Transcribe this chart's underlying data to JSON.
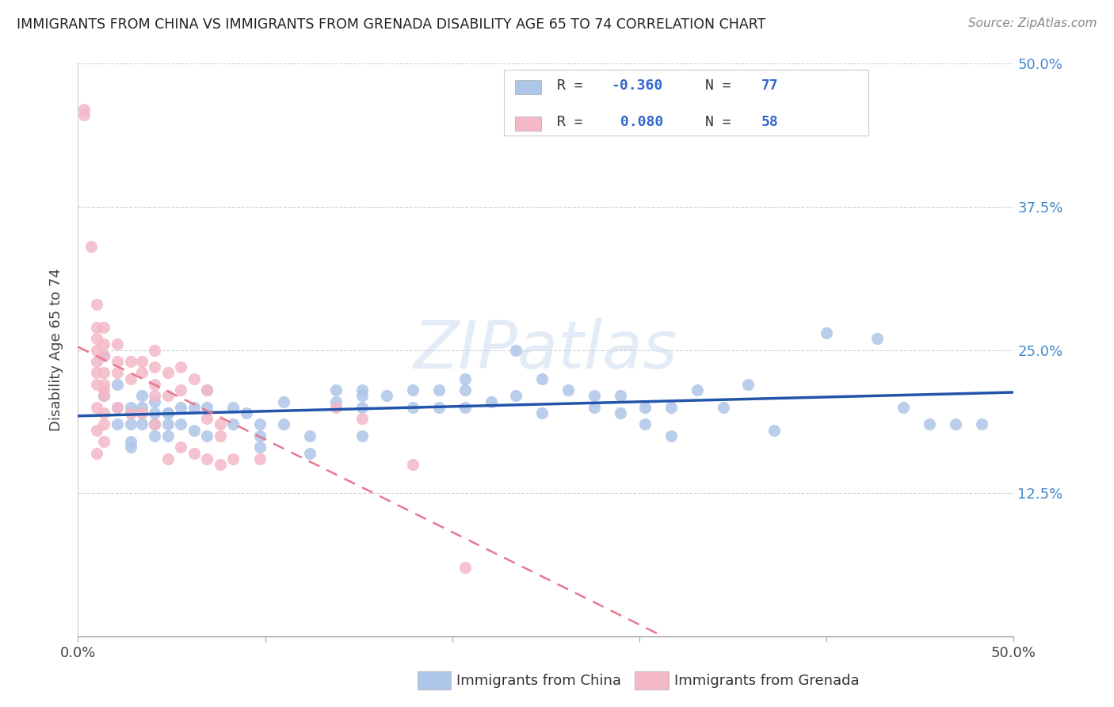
{
  "title": "IMMIGRANTS FROM CHINA VS IMMIGRANTS FROM GRENADA DISABILITY AGE 65 TO 74 CORRELATION CHART",
  "source": "Source: ZipAtlas.com",
  "ylabel": "Disability Age 65 to 74",
  "xlim": [
    0.0,
    0.5
  ],
  "ylim": [
    0.0,
    0.5
  ],
  "china_color": "#aec6e8",
  "grenada_color": "#f4b8c8",
  "china_line_color": "#2255aa",
  "grenada_line_color": "#e87890",
  "background_color": "#ffffff",
  "china_x": [
    0.014,
    0.014,
    0.021,
    0.021,
    0.021,
    0.028,
    0.028,
    0.028,
    0.028,
    0.028,
    0.034,
    0.034,
    0.034,
    0.034,
    0.041,
    0.041,
    0.041,
    0.041,
    0.048,
    0.048,
    0.048,
    0.048,
    0.055,
    0.055,
    0.062,
    0.062,
    0.069,
    0.069,
    0.069,
    0.083,
    0.083,
    0.09,
    0.097,
    0.097,
    0.097,
    0.11,
    0.11,
    0.124,
    0.124,
    0.138,
    0.138,
    0.152,
    0.152,
    0.152,
    0.152,
    0.165,
    0.179,
    0.179,
    0.193,
    0.193,
    0.207,
    0.207,
    0.207,
    0.221,
    0.234,
    0.234,
    0.248,
    0.248,
    0.262,
    0.276,
    0.276,
    0.29,
    0.29,
    0.303,
    0.303,
    0.317,
    0.317,
    0.331,
    0.345,
    0.358,
    0.372,
    0.4,
    0.427,
    0.441,
    0.455,
    0.469,
    0.483
  ],
  "china_y": [
    0.245,
    0.21,
    0.22,
    0.2,
    0.185,
    0.2,
    0.195,
    0.185,
    0.17,
    0.165,
    0.21,
    0.2,
    0.195,
    0.185,
    0.205,
    0.195,
    0.185,
    0.175,
    0.195,
    0.195,
    0.185,
    0.175,
    0.2,
    0.185,
    0.2,
    0.18,
    0.215,
    0.2,
    0.175,
    0.2,
    0.185,
    0.195,
    0.185,
    0.175,
    0.165,
    0.205,
    0.185,
    0.175,
    0.16,
    0.215,
    0.205,
    0.215,
    0.21,
    0.2,
    0.175,
    0.21,
    0.215,
    0.2,
    0.215,
    0.2,
    0.225,
    0.215,
    0.2,
    0.205,
    0.25,
    0.21,
    0.225,
    0.195,
    0.215,
    0.21,
    0.2,
    0.21,
    0.195,
    0.2,
    0.185,
    0.2,
    0.175,
    0.215,
    0.2,
    0.22,
    0.18,
    0.265,
    0.26,
    0.2,
    0.185,
    0.185,
    0.185
  ],
  "grenada_x": [
    0.003,
    0.003,
    0.007,
    0.01,
    0.01,
    0.01,
    0.01,
    0.01,
    0.01,
    0.01,
    0.01,
    0.01,
    0.01,
    0.014,
    0.014,
    0.014,
    0.014,
    0.014,
    0.014,
    0.014,
    0.014,
    0.014,
    0.014,
    0.021,
    0.021,
    0.021,
    0.021,
    0.028,
    0.028,
    0.028,
    0.034,
    0.034,
    0.034,
    0.041,
    0.041,
    0.041,
    0.041,
    0.041,
    0.048,
    0.048,
    0.048,
    0.055,
    0.055,
    0.055,
    0.062,
    0.062,
    0.069,
    0.069,
    0.069,
    0.076,
    0.076,
    0.076,
    0.083,
    0.097,
    0.138,
    0.152,
    0.179,
    0.207
  ],
  "grenada_y": [
    0.46,
    0.455,
    0.34,
    0.29,
    0.27,
    0.26,
    0.25,
    0.24,
    0.23,
    0.22,
    0.2,
    0.18,
    0.16,
    0.27,
    0.255,
    0.245,
    0.23,
    0.22,
    0.215,
    0.21,
    0.195,
    0.185,
    0.17,
    0.255,
    0.24,
    0.23,
    0.2,
    0.24,
    0.225,
    0.195,
    0.24,
    0.23,
    0.195,
    0.25,
    0.235,
    0.22,
    0.21,
    0.185,
    0.23,
    0.21,
    0.155,
    0.235,
    0.215,
    0.165,
    0.225,
    0.16,
    0.215,
    0.19,
    0.155,
    0.185,
    0.175,
    0.15,
    0.155,
    0.155,
    0.2,
    0.19,
    0.15,
    0.06
  ]
}
